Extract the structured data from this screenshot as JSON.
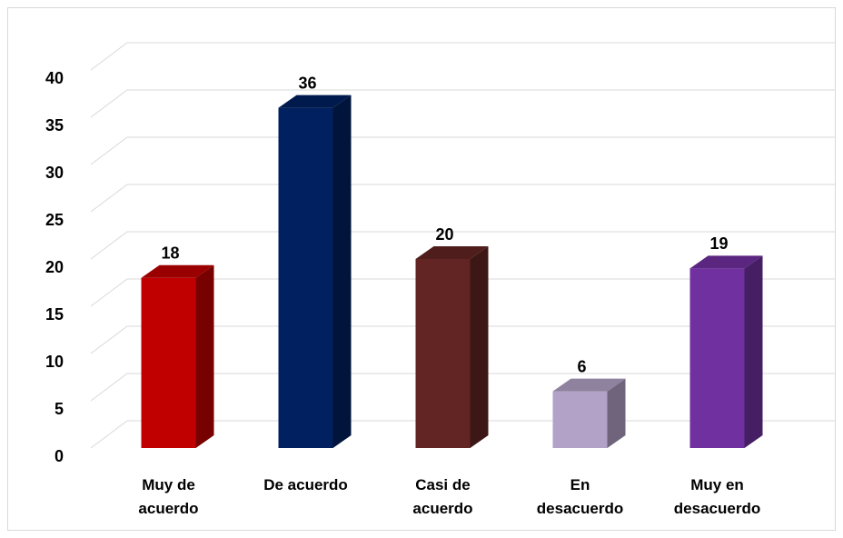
{
  "chart_data": {
    "type": "bar3d",
    "categories": [
      "Muy de acuerdo",
      "De acuerdo",
      "Casi de acuerdo",
      "En desacuerdo",
      "Muy en desacuerdo"
    ],
    "values": [
      18,
      36,
      20,
      6,
      19
    ],
    "colors": [
      "#c00000",
      "#002060",
      "#632523",
      "#b3a2c7",
      "#7030a0"
    ],
    "ylim": [
      0,
      40
    ],
    "yticks": [
      0,
      5,
      10,
      15,
      20,
      25,
      30,
      35,
      40
    ],
    "grid": true
  }
}
